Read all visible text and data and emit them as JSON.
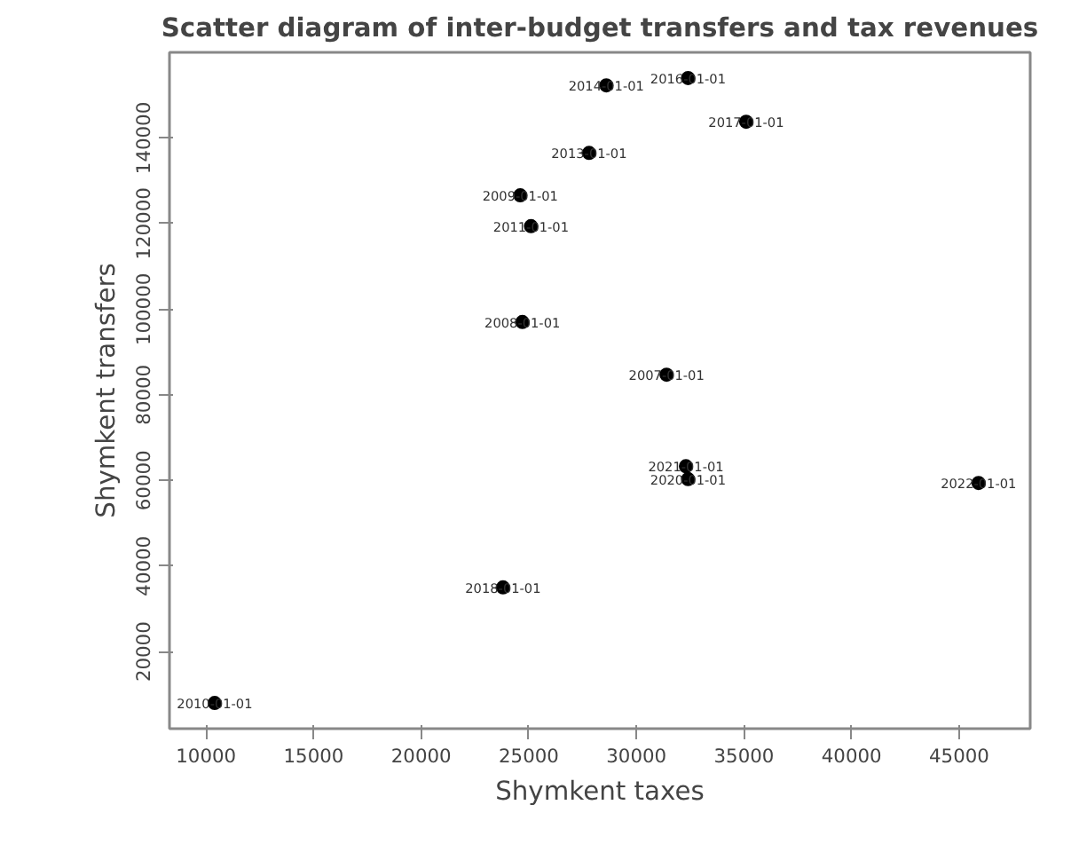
{
  "chart_data": {
    "type": "scatter",
    "title": "Scatter diagram of inter-budget transfers and tax revenues",
    "xlabel": "Shymkent taxes",
    "ylabel": "Shymkent transfers",
    "x": [
      10400,
      23800,
      24700,
      24600,
      25100,
      27800,
      28600,
      32400,
      35100,
      31400,
      32300,
      32400,
      45900
    ],
    "series": [
      {
        "color": "#000000",
        "values": [
          8000,
          35000,
          97000,
          126600,
          119400,
          136500,
          152300,
          154000,
          143800,
          84700,
          63300,
          60300,
          59400
        ]
      }
    ],
    "xlim": [
      8300,
      48300
    ],
    "ylim": [
      2000,
      160000
    ],
    "xticks": [
      10000,
      15000,
      20000,
      25000,
      30000,
      35000,
      40000,
      45000
    ],
    "yticks": [
      20000,
      40000,
      60000,
      80000,
      100000,
      120000,
      140000
    ],
    "marker": "circle",
    "grid": false,
    "annotations": [
      {
        "text": "2010-01-01",
        "x": 10400,
        "y": 8000
      },
      {
        "text": "2018-01-01",
        "x": 23800,
        "y": 35000
      },
      {
        "text": "2008-01-01",
        "x": 24700,
        "y": 97000
      },
      {
        "text": "2009-01-01",
        "x": 24600,
        "y": 126600
      },
      {
        "text": "2011-01-01",
        "x": 25100,
        "y": 119400
      },
      {
        "text": "2013-01-01",
        "x": 27800,
        "y": 136500
      },
      {
        "text": "2014-01-01",
        "x": 28600,
        "y": 152300
      },
      {
        "text": "2016-01-01",
        "x": 32400,
        "y": 154000
      },
      {
        "text": "2017-01-01",
        "x": 35100,
        "y": 143800
      },
      {
        "text": "2007-01-01",
        "x": 31400,
        "y": 84700
      },
      {
        "text": "2021-01-01",
        "x": 32300,
        "y": 63300
      },
      {
        "text": "2020-01-01",
        "x": 32400,
        "y": 60300
      },
      {
        "text": "2022-01-01",
        "x": 45900,
        "y": 59400
      }
    ]
  }
}
